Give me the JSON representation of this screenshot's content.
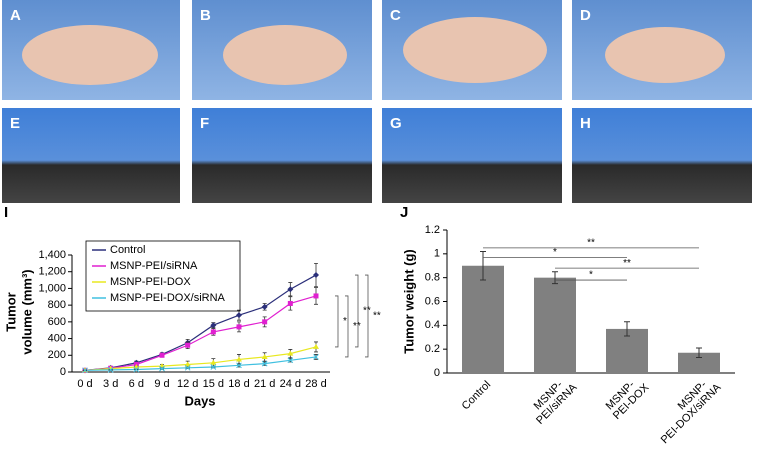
{
  "photo_labels": [
    "A",
    "B",
    "C",
    "D",
    "E",
    "F",
    "G",
    "H"
  ],
  "chart_data": [
    {
      "type": "line",
      "panel_label": "I",
      "ylabel_lines": [
        "Tumor",
        "volume (mm³)"
      ],
      "xlabel": "Days",
      "categories": [
        "0 d",
        "3 d",
        "6 d",
        "9 d",
        "12 d",
        "15 d",
        "18 d",
        "21 d",
        "24 d",
        "28 d"
      ],
      "ylim": [
        0,
        1400
      ],
      "yticks": [
        0,
        200,
        400,
        600,
        800,
        {
          "value": 1000,
          "label": "1,000"
        },
        {
          "value": 1200,
          "label": "1,200"
        },
        {
          "value": 1400,
          "label": "1,400"
        }
      ],
      "legend": "upper-left",
      "series": [
        {
          "name": "Control",
          "color": "#2b2f7a",
          "marker": "diamond",
          "values": [
            20,
            50,
            110,
            210,
            350,
            560,
            680,
            780,
            990,
            1160
          ],
          "errors": [
            10,
            10,
            20,
            20,
            40,
            30,
            60,
            40,
            80,
            140
          ]
        },
        {
          "name": "MSNP-PEI/siRNA",
          "color": "#e020d0",
          "marker": "square",
          "values": [
            20,
            45,
            90,
            200,
            320,
            480,
            540,
            600,
            820,
            910
          ],
          "errors": [
            5,
            10,
            20,
            20,
            40,
            40,
            60,
            60,
            80,
            100
          ]
        },
        {
          "name": "MSNP-PEI-DOX",
          "color": "#e8e820",
          "marker": "triangle",
          "values": [
            20,
            40,
            60,
            70,
            90,
            110,
            150,
            180,
            220,
            300
          ],
          "errors": [
            5,
            5,
            10,
            20,
            40,
            50,
            60,
            50,
            50,
            60
          ]
        },
        {
          "name": "MSNP-PEI-DOX/siRNA",
          "color": "#40c0e0",
          "marker": "x",
          "values": [
            20,
            25,
            30,
            40,
            50,
            60,
            80,
            100,
            140,
            180
          ],
          "errors": [
            5,
            5,
            5,
            10,
            10,
            10,
            20,
            20,
            20,
            30
          ]
        }
      ],
      "comparisons": [
        {
          "from": 1,
          "to": 2,
          "label": "*"
        },
        {
          "from": 1,
          "to": 3,
          "label": "**"
        },
        {
          "from": 0,
          "to": 2,
          "label": "**"
        },
        {
          "from": 0,
          "to": 3,
          "label": "**"
        }
      ]
    },
    {
      "type": "bar",
      "panel_label": "J",
      "ylabel": "Tumor weight (g)",
      "categories": [
        "Control",
        "MSNP-\nPEI/siRNA",
        "MSNP-\nPEI-DOX",
        "MSNP-\nPEI-DOX/siRNA"
      ],
      "values": [
        0.9,
        0.8,
        0.37,
        0.17
      ],
      "errors": [
        0.12,
        0.05,
        0.06,
        0.04
      ],
      "color": "#808080",
      "ylim": [
        0,
        1.2
      ],
      "yticks": [
        0,
        0.2,
        0.4,
        0.6,
        0.8,
        1,
        1.2
      ],
      "comparisons": [
        {
          "from": 0,
          "to": 3,
          "y": 1.05,
          "label": "**"
        },
        {
          "from": 0,
          "to": 2,
          "y": 0.97,
          "label": "*"
        },
        {
          "from": 1,
          "to": 3,
          "y": 0.88,
          "label": "**"
        },
        {
          "from": 1,
          "to": 2,
          "y": 0.78,
          "label": "*"
        }
      ]
    }
  ]
}
